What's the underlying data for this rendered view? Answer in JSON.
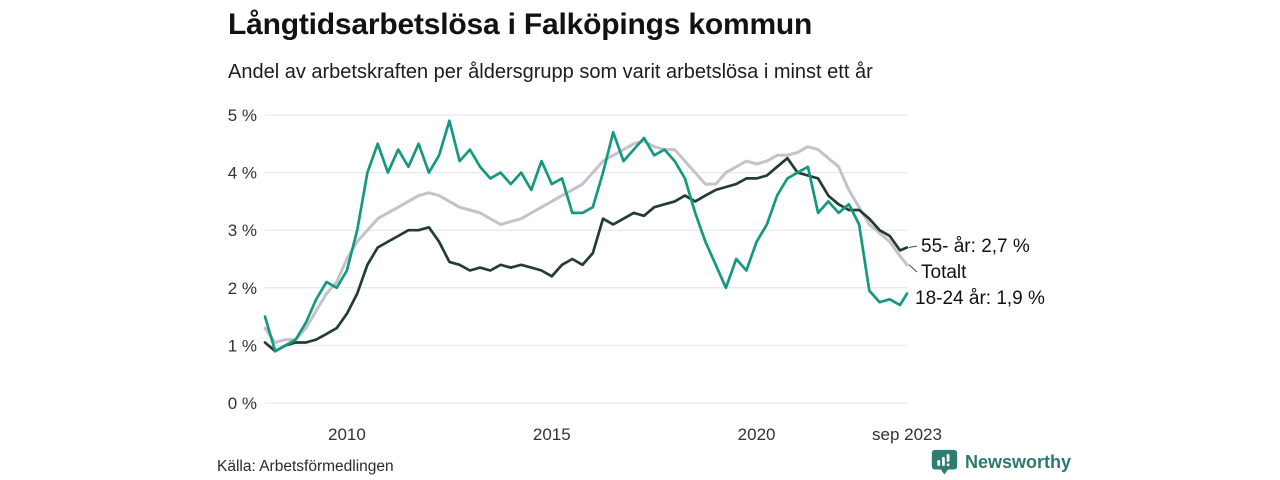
{
  "header": {
    "title": "Långtidsarbetslösa i Falköpings kommun",
    "subtitle": "Andel av arbetskraften per åldersgrupp som varit arbetslösa i minst ett år"
  },
  "footer": {
    "source": "Källa: Arbetsförmedlingen",
    "brand": {
      "name": "Newsworthy",
      "color": "#2c7a6f",
      "icon": "newsworthy-chart-bubble-icon"
    }
  },
  "chart_data": {
    "type": "line",
    "title": "Långtidsarbetslösa i Falköpings kommun",
    "subtitle": "Andel av arbetskraften per åldersgrupp som varit arbetslösa i minst ett år",
    "xlabel": "",
    "ylabel": "",
    "ylim": [
      0,
      5
    ],
    "xlim": [
      2008,
      2023.67
    ],
    "grid": "horizontal",
    "legend_position": "end-of-line-labels",
    "y_ticks": [
      {
        "value": 0,
        "label": "0 %"
      },
      {
        "value": 1,
        "label": "1 %"
      },
      {
        "value": 2,
        "label": "2 %"
      },
      {
        "value": 3,
        "label": "3 %"
      },
      {
        "value": 4,
        "label": "4 %"
      },
      {
        "value": 5,
        "label": "5 %"
      }
    ],
    "x_ticks": [
      {
        "value": 2010,
        "label": "2010"
      },
      {
        "value": 2015,
        "label": "2015"
      },
      {
        "value": 2020,
        "label": "2020"
      },
      {
        "value": 2023.67,
        "label": "sep 2023"
      }
    ],
    "x": [
      2008,
      2008.25,
      2008.5,
      2008.75,
      2009,
      2009.25,
      2009.5,
      2009.75,
      2010,
      2010.25,
      2010.5,
      2010.75,
      2011,
      2011.25,
      2011.5,
      2011.75,
      2012,
      2012.25,
      2012.5,
      2012.75,
      2013,
      2013.25,
      2013.5,
      2013.75,
      2014,
      2014.25,
      2014.5,
      2014.75,
      2015,
      2015.25,
      2015.5,
      2015.75,
      2016,
      2016.25,
      2016.5,
      2016.75,
      2017,
      2017.25,
      2017.5,
      2017.75,
      2018,
      2018.25,
      2018.5,
      2018.75,
      2019,
      2019.25,
      2019.5,
      2019.75,
      2020,
      2020.25,
      2020.5,
      2020.75,
      2021,
      2021.25,
      2021.5,
      2021.75,
      2022,
      2022.25,
      2022.5,
      2022.75,
      2023,
      2023.25,
      2023.5,
      2023.67
    ],
    "series": [
      {
        "name": "Totalt",
        "label": "Totalt",
        "end_value": "2,4 %",
        "color": "#c4c2cc",
        "width": 3,
        "values": [
          1.3,
          1.05,
          1.1,
          1.1,
          1.3,
          1.6,
          1.9,
          2.1,
          2.5,
          2.8,
          3.0,
          3.2,
          3.3,
          3.4,
          3.5,
          3.6,
          3.65,
          3.6,
          3.5,
          3.4,
          3.35,
          3.3,
          3.2,
          3.1,
          3.15,
          3.2,
          3.3,
          3.4,
          3.5,
          3.6,
          3.7,
          3.8,
          4.0,
          4.2,
          4.3,
          4.4,
          4.5,
          4.55,
          4.45,
          4.4,
          4.4,
          4.2,
          4.0,
          3.8,
          3.8,
          4.0,
          4.1,
          4.2,
          4.15,
          4.2,
          4.3,
          4.3,
          4.35,
          4.45,
          4.4,
          4.25,
          4.1,
          3.7,
          3.4,
          3.1,
          2.95,
          2.8,
          2.55,
          2.4
        ]
      },
      {
        "name": "55- år",
        "label": "55- år: 2,7 %",
        "end_value": "2,7 %",
        "color": "#233d35",
        "width": 2.7,
        "values": [
          1.05,
          0.9,
          1.0,
          1.05,
          1.05,
          1.1,
          1.2,
          1.3,
          1.55,
          1.9,
          2.4,
          2.7,
          2.8,
          2.9,
          3.0,
          3.0,
          3.05,
          2.8,
          2.45,
          2.4,
          2.3,
          2.35,
          2.3,
          2.4,
          2.35,
          2.4,
          2.35,
          2.3,
          2.2,
          2.4,
          2.5,
          2.4,
          2.6,
          3.2,
          3.1,
          3.2,
          3.3,
          3.25,
          3.4,
          3.45,
          3.5,
          3.6,
          3.5,
          3.6,
          3.7,
          3.75,
          3.8,
          3.9,
          3.9,
          3.95,
          4.1,
          4.25,
          4.0,
          3.95,
          3.9,
          3.6,
          3.45,
          3.35,
          3.35,
          3.2,
          3.0,
          2.9,
          2.65,
          2.7
        ]
      },
      {
        "name": "18-24 år",
        "label": "18-24 år: 1,9 %",
        "end_value": "1,9 %",
        "color": "#14997f",
        "width": 2.7,
        "values": [
          1.5,
          0.9,
          1.0,
          1.1,
          1.4,
          1.8,
          2.1,
          2.0,
          2.3,
          3.0,
          4.0,
          4.5,
          4.0,
          4.4,
          4.1,
          4.5,
          4.0,
          4.3,
          4.9,
          4.2,
          4.4,
          4.1,
          3.9,
          4.0,
          3.8,
          4.0,
          3.7,
          4.2,
          3.8,
          3.9,
          3.3,
          3.3,
          3.4,
          4.0,
          4.7,
          4.2,
          4.4,
          4.6,
          4.3,
          4.4,
          4.2,
          3.9,
          3.3,
          2.8,
          2.4,
          2.0,
          2.5,
          2.3,
          2.8,
          3.1,
          3.6,
          3.9,
          4.0,
          4.1,
          3.3,
          3.5,
          3.3,
          3.45,
          3.1,
          1.95,
          1.75,
          1.8,
          1.7,
          1.9
        ]
      }
    ],
    "style": {
      "grid_color": "#e4e4e4",
      "tick_color": "#333333",
      "annotation_color": "#111111",
      "leader_color": "#4a4a4a"
    }
  }
}
